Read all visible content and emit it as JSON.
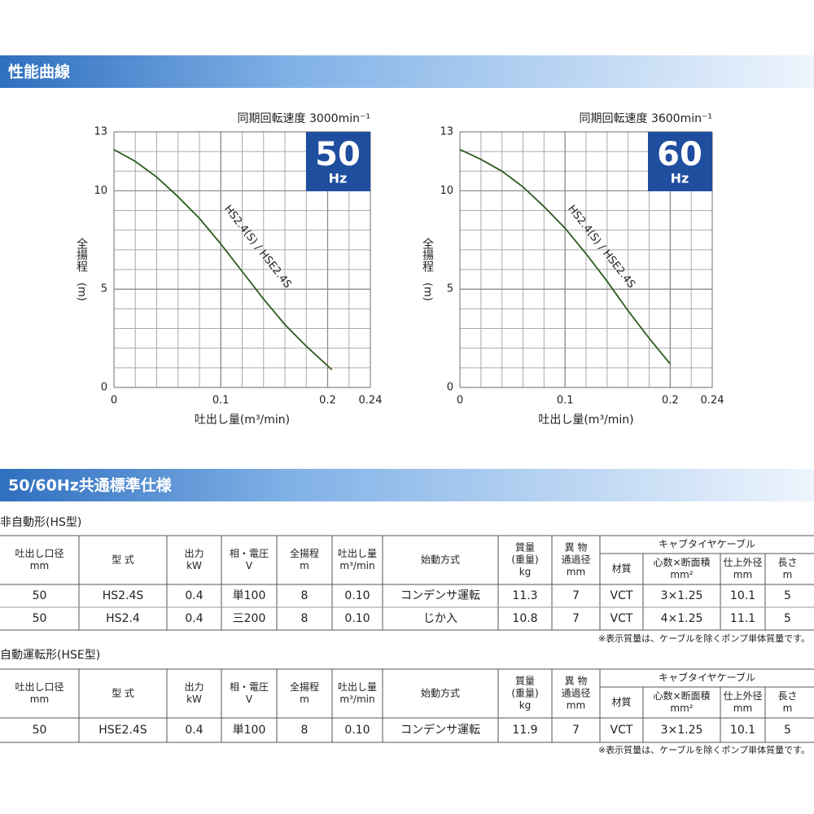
{
  "header": {
    "section1": "性能曲線",
    "section2": "50/60Hz共通標準仕様"
  },
  "chart_data": [
    {
      "type": "line",
      "title": "同期回転速度 3000min⁻¹",
      "badge": "50",
      "badge_unit": "Hz",
      "y_label": "全揚程",
      "y_unit": "(m)",
      "x_label": "吐出し量(m³/min)",
      "x": [
        0,
        0.02,
        0.04,
        0.06,
        0.08,
        0.1,
        0.12,
        0.14,
        0.16,
        0.18,
        0.204
      ],
      "series": [
        {
          "name": "HS2.4(S) / HSE2.4S",
          "color": "#2d5a1e",
          "values": [
            12.1,
            11.5,
            10.7,
            9.7,
            8.6,
            7.3,
            5.9,
            4.5,
            3.2,
            2.1,
            0.9
          ]
        }
      ],
      "xlim": [
        0,
        0.24
      ],
      "ylim": [
        0,
        13
      ],
      "xticks": [
        0,
        0.1,
        0.2,
        0.24
      ],
      "yticks": [
        0,
        5,
        10,
        13
      ],
      "grid": true
    },
    {
      "type": "line",
      "title": "同期回転速度 3600min⁻¹",
      "badge": "60",
      "badge_unit": "Hz",
      "y_label": "全揚程",
      "y_unit": "(m)",
      "x_label": "吐出し量(m³/min)",
      "x": [
        0,
        0.02,
        0.04,
        0.06,
        0.08,
        0.1,
        0.12,
        0.14,
        0.16,
        0.18,
        0.2
      ],
      "series": [
        {
          "name": "HS2.4(S) / HSE2.4S",
          "color": "#2d5a1e",
          "values": [
            12.1,
            11.6,
            11.0,
            10.2,
            9.2,
            8.1,
            6.8,
            5.4,
            3.9,
            2.5,
            1.2
          ]
        }
      ],
      "xlim": [
        0,
        0.24
      ],
      "ylim": [
        0,
        13
      ],
      "xticks": [
        0,
        0.1,
        0.2,
        0.24
      ],
      "yticks": [
        0,
        5,
        10,
        13
      ],
      "grid": true
    }
  ],
  "spec_header": {
    "columns": [
      [
        "吐出し口径",
        "mm"
      ],
      [
        "型 式"
      ],
      [
        "出力",
        "kW"
      ],
      [
        "相・電圧",
        "V"
      ],
      [
        "全揚程",
        "m"
      ],
      [
        "吐出し量",
        "m³/min"
      ],
      [
        "始動方式"
      ],
      [
        "質量",
        "(重量)",
        "kg"
      ],
      [
        "異 物",
        "通過径",
        "mm"
      ]
    ],
    "cable_group": "キャブタイヤケーブル",
    "cable_columns": [
      [
        "材質"
      ],
      [
        "心数×断面積",
        "mm²"
      ],
      [
        "仕上外径",
        "mm"
      ],
      [
        "長さ",
        "m"
      ]
    ]
  },
  "tables": [
    {
      "caption": "非自動形(HS型)",
      "rows": [
        [
          "50",
          "HS2.4S",
          "0.4",
          "単100",
          "8",
          "0.10",
          "コンデンサ運転",
          "11.3",
          "7",
          "VCT",
          "3×1.25",
          "10.1",
          "5"
        ],
        [
          "50",
          "HS2.4",
          "0.4",
          "三200",
          "8",
          "0.10",
          "じか入",
          "10.8",
          "7",
          "VCT",
          "4×1.25",
          "11.1",
          "5"
        ]
      ],
      "note": "※表示質量は、ケーブルを除くポンプ単体質量です。"
    },
    {
      "caption": "自動運転形(HSE型)",
      "rows": [
        [
          "50",
          "HSE2.4S",
          "0.4",
          "単100",
          "8",
          "0.10",
          "コンデンサ運転",
          "11.9",
          "7",
          "VCT",
          "3×1.25",
          "10.1",
          "5"
        ]
      ],
      "note": "※表示質量は、ケーブルを除くポンプ単体質量です。"
    }
  ]
}
